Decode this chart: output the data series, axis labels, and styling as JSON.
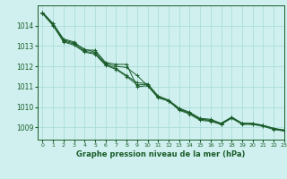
{
  "title": "Graphe pression niveau de la mer (hPa)",
  "bg_color": "#cff0ee",
  "grid_color": "#aaddda",
  "line_color": "#1a5c2a",
  "xlim": [
    -0.5,
    23
  ],
  "ylim": [
    1008.4,
    1015.0
  ],
  "xticks": [
    0,
    1,
    2,
    3,
    4,
    5,
    6,
    7,
    8,
    9,
    10,
    11,
    12,
    13,
    14,
    15,
    16,
    17,
    18,
    19,
    20,
    21,
    22,
    23
  ],
  "yticks": [
    1009,
    1010,
    1011,
    1012,
    1013,
    1014
  ],
  "series": [
    [
      1014.65,
      1014.1,
      1013.35,
      1013.2,
      1012.8,
      1012.8,
      1012.2,
      1012.1,
      1012.1,
      1011.0,
      1011.05,
      1010.5,
      1010.3,
      1009.85,
      1009.65,
      1009.35,
      1009.3,
      1009.15,
      1009.5,
      1009.2,
      1009.15,
      1009.1,
      1008.95,
      1008.85
    ],
    [
      1014.65,
      1014.1,
      1013.3,
      1013.15,
      1012.85,
      1012.7,
      1012.15,
      1012.0,
      1011.95,
      1011.55,
      1011.05,
      1010.45,
      1010.3,
      1009.9,
      1009.7,
      1009.4,
      1009.35,
      1009.2,
      1009.5,
      1009.2,
      1009.2,
      1009.1,
      1008.95,
      1008.85
    ],
    [
      1014.6,
      1014.05,
      1013.25,
      1013.1,
      1012.75,
      1012.65,
      1012.1,
      1011.9,
      1011.55,
      1011.2,
      1011.15,
      1010.55,
      1010.35,
      1009.95,
      1009.75,
      1009.45,
      1009.4,
      1009.2,
      1009.5,
      1009.2,
      1009.2,
      1009.1,
      1008.95,
      1008.88
    ],
    [
      1014.6,
      1014.0,
      1013.2,
      1013.05,
      1012.7,
      1012.6,
      1012.05,
      1011.85,
      1011.5,
      1011.1,
      1011.1,
      1010.5,
      1010.3,
      1009.9,
      1009.7,
      1009.4,
      1009.35,
      1009.15,
      1009.45,
      1009.15,
      1009.15,
      1009.05,
      1008.9,
      1008.82
    ]
  ]
}
